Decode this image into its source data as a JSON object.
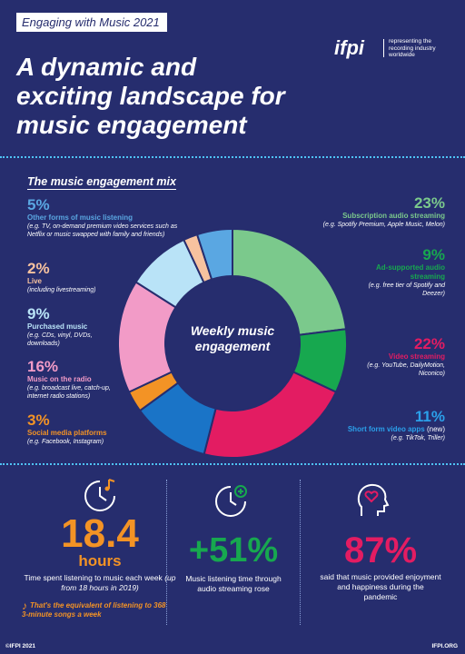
{
  "header": {
    "tag": "Engaging with Music 2021",
    "title_lines": [
      "A dynamic and",
      "exciting landscape for",
      "music engagement"
    ],
    "logo_word": "ifpi",
    "logo_tagline": "representing the recording industry worldwide"
  },
  "mix_title": "The music engagement mix",
  "chart_data": {
    "type": "pie",
    "title": "",
    "center_label_lines": [
      "Weekly music",
      "engagement"
    ],
    "segments": [
      {
        "value": 23,
        "label": "23%",
        "name": "Subscription audio streaming",
        "example": "(e.g. Spotify Premium, Apple Music, Melon)",
        "color": "#7bc98c"
      },
      {
        "value": 9,
        "label": "9%",
        "name": "Ad-supported audio streaming",
        "example": "(e.g. free tier of Spotify and Deezer)",
        "color": "#17a84f"
      },
      {
        "value": 22,
        "label": "22%",
        "name": "Video streaming",
        "example": "(e.g. YouTube, DailyMotion, Niconico)",
        "color": "#e31c62"
      },
      {
        "value": 11,
        "label": "11%",
        "name": "Short form video apps",
        "name_suffix": "(new)",
        "example": "(e.g. TikTok, Triller)",
        "color": "#1a74c7"
      },
      {
        "value": 3,
        "label": "3%",
        "name": "Social media platforms",
        "example": "(e.g. Facebook, Instagram)",
        "color": "#f39325"
      },
      {
        "value": 16,
        "label": "16%",
        "name": "Music on the radio",
        "example": "(e.g. broadcast live, catch-up, internet radio stations)",
        "color": "#f29bc7"
      },
      {
        "value": 9,
        "label": "9%",
        "name": "Purchased music",
        "example": "(e.g. CDs, vinyl, DVDs, downloads)",
        "color": "#b9e3f7"
      },
      {
        "value": 2,
        "label": "2%",
        "name": "Live",
        "example": "(including livestreaming)",
        "color": "#f7c29f"
      },
      {
        "value": 5,
        "label": "5%",
        "name": "Other forms of music listening",
        "example": "(e.g. TV, on-demand premium video services such as Netflix or music swapped with family and friends)",
        "color": "#5aa7e2"
      }
    ]
  },
  "stats": [
    {
      "number": "18.4",
      "unit": "hours",
      "caption_main": "Time spent listening to music each week",
      "caption_sub": "(up from 18 hours in 2019)",
      "note": "That's the equivalent of listening to 368 3-minute songs a week",
      "color": "#f39325",
      "icon": "clock-music-icon"
    },
    {
      "number": "+51%",
      "caption": "Music listening time through audio streaming rose",
      "color": "#17a84f",
      "icon": "clock-plus-icon"
    },
    {
      "number": "87%",
      "caption": "said that music provided enjoyment and happiness during the pandemic",
      "color": "#e31c62",
      "icon": "head-heart-icon"
    }
  ],
  "footer": {
    "left": "©IFPI 2021",
    "right": "IFPI.ORG"
  }
}
